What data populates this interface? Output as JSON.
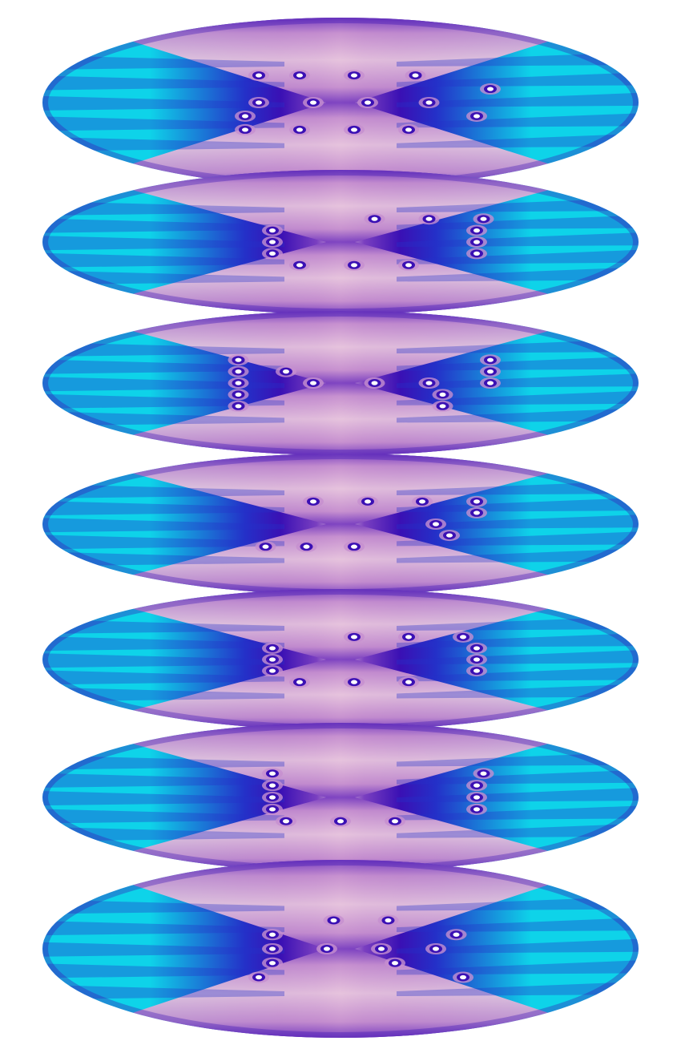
{
  "colors": {
    "background": "#ffffff",
    "pink": "#e6c3dd",
    "lavender": "#c68fcf",
    "violet": "#7a3fc0",
    "indigo": "#3a10b4",
    "blue": "#2430c8",
    "cyan": "#0ed3e9",
    "ring": "#ffffff"
  },
  "panels": [
    {
      "name": "panel-1",
      "rows": [
        [
          0.38,
          0.44,
          0.52,
          0.61
        ],
        [
          0.72
        ],
        [
          0.38,
          0.46,
          0.54,
          0.63
        ],
        [
          0.36,
          0.7
        ],
        [
          0.36,
          0.44,
          0.52,
          0.6
        ]
      ]
    },
    {
      "name": "panel-2",
      "rows": [
        [
          0.55,
          0.63,
          0.71
        ],
        [
          0.4,
          0.7
        ],
        [
          0.4,
          0.7
        ],
        [
          0.4,
          0.7
        ],
        [
          0.44,
          0.52,
          0.6
        ]
      ]
    },
    {
      "name": "panel-3",
      "rows": [
        [
          0.35,
          0.72
        ],
        [
          0.35,
          0.42,
          0.72
        ],
        [
          0.35,
          0.46,
          0.55,
          0.63,
          0.72
        ],
        [
          0.35,
          0.65
        ],
        [
          0.35,
          0.65
        ]
      ]
    },
    {
      "name": "panel-4",
      "rows": [
        [
          0.46,
          0.54,
          0.62,
          0.7
        ],
        [
          0.7
        ],
        [
          0.64
        ],
        [
          0.66
        ],
        [
          0.39,
          0.45,
          0.52
        ]
      ]
    },
    {
      "name": "panel-5",
      "rows": [
        [
          0.52,
          0.6,
          0.68
        ],
        [
          0.4,
          0.7
        ],
        [
          0.4,
          0.7
        ],
        [
          0.4,
          0.7
        ],
        [
          0.44,
          0.52,
          0.6
        ]
      ]
    },
    {
      "name": "panel-6",
      "rows": [
        [
          0.4,
          0.71
        ],
        [
          0.4,
          0.7
        ],
        [
          0.4,
          0.7
        ],
        [
          0.4,
          0.7
        ],
        [
          0.42,
          0.5,
          0.58
        ]
      ]
    },
    {
      "name": "panel-7",
      "rows": [
        [
          0.49,
          0.57
        ],
        [
          0.4,
          0.67
        ],
        [
          0.4,
          0.48,
          0.56,
          0.64
        ],
        [
          0.4,
          0.58
        ],
        [
          0.38,
          0.68
        ]
      ]
    }
  ]
}
